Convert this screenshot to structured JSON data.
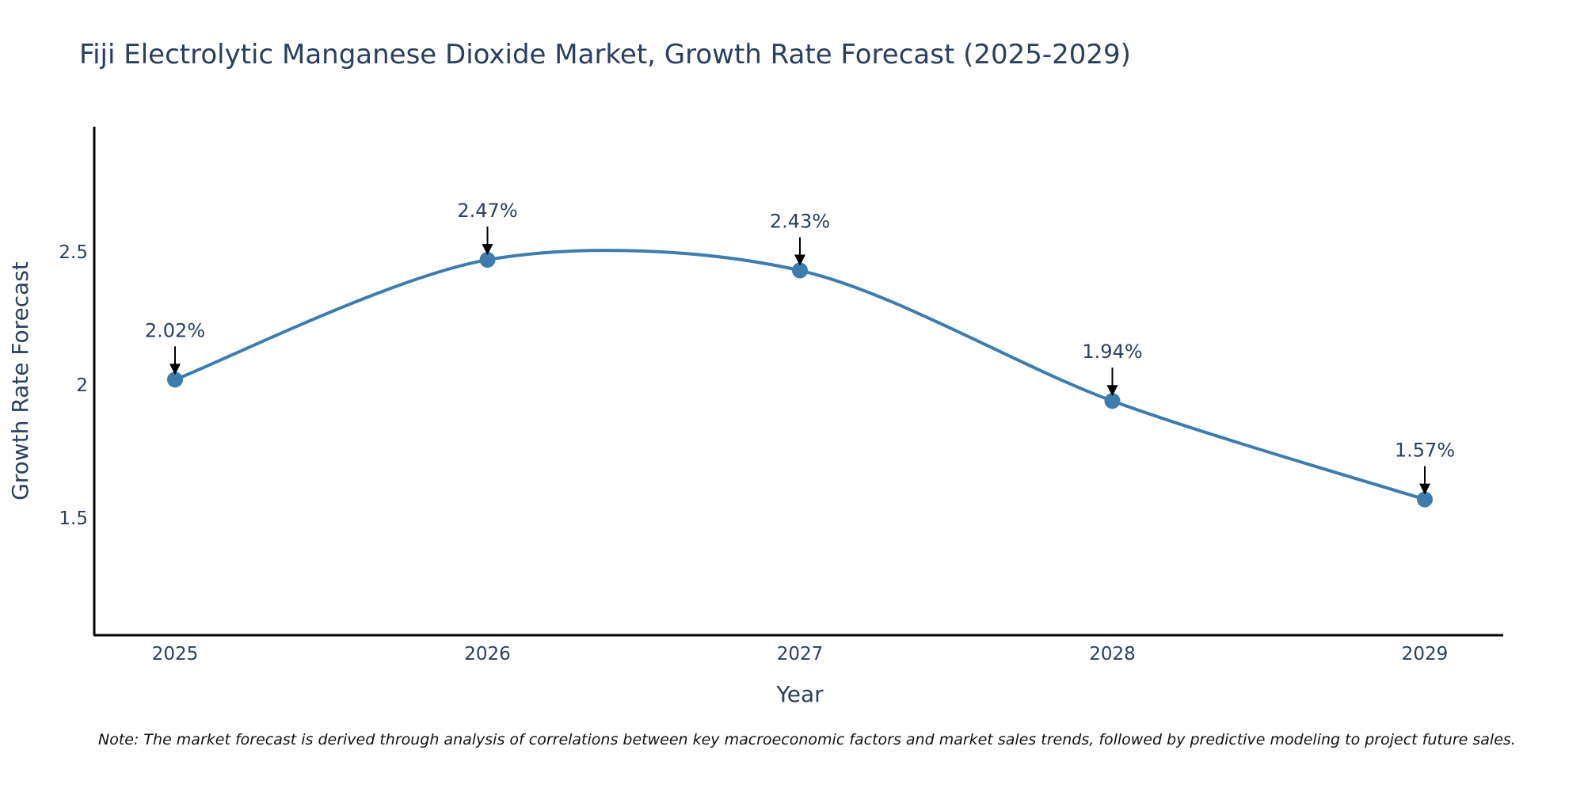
{
  "chart_data": {
    "type": "line",
    "title": "Fiji Electrolytic Manganese Dioxide Market, Growth Rate Forecast (2025-2029)",
    "xlabel": "Year",
    "ylabel": "Growth Rate Forecast",
    "x": [
      "2025",
      "2026",
      "2027",
      "2028",
      "2029"
    ],
    "values": [
      2.02,
      2.47,
      2.43,
      1.94,
      1.57
    ],
    "labels": [
      "2.02%",
      "2.47%",
      "2.43%",
      "1.94%",
      "1.57%"
    ],
    "yticks": [
      1.5,
      2,
      2.5
    ],
    "ytick_labels": [
      "1.5",
      "2",
      "2.5"
    ],
    "ylim": [
      1.06,
      2.97
    ],
    "grid": false,
    "line_shape": "spline",
    "color": "#3d7dad",
    "note": "Note: The market forecast is derived through analysis of correlations between key macroeconomic factors and market sales trends, followed by predictive modeling to project future sales."
  }
}
